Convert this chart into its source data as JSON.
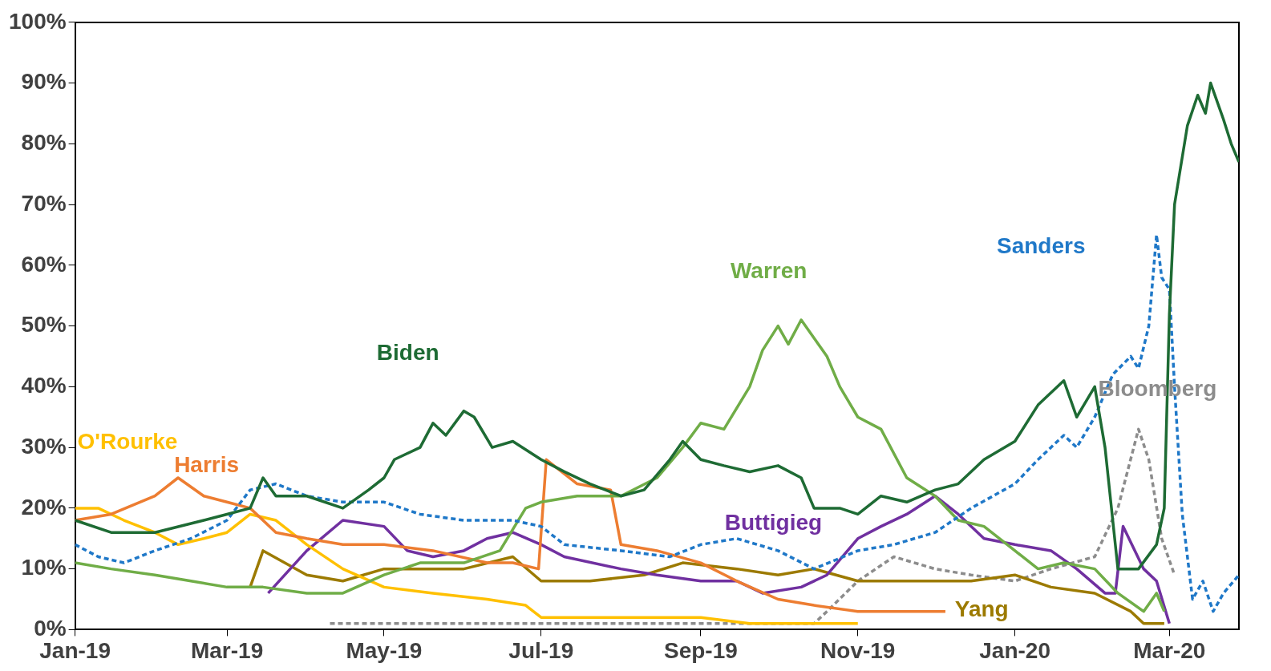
{
  "chart_data": {
    "type": "line",
    "xlim": [
      "2019-01-01",
      "2020-03-28"
    ],
    "ylim": [
      0,
      100
    ],
    "xticks": [
      {
        "value": "2019-01-01",
        "label": "Jan-19"
      },
      {
        "value": "2019-03-01",
        "label": "Mar-19"
      },
      {
        "value": "2019-05-01",
        "label": "May-19"
      },
      {
        "value": "2019-07-01",
        "label": "Jul-19"
      },
      {
        "value": "2019-09-01",
        "label": "Sep-19"
      },
      {
        "value": "2019-11-01",
        "label": "Nov-19"
      },
      {
        "value": "2020-01-01",
        "label": "Jan-20"
      },
      {
        "value": "2020-03-01",
        "label": "Mar-20"
      }
    ],
    "yticks": [
      {
        "value": 0,
        "label": "0%"
      },
      {
        "value": 10,
        "label": "10%"
      },
      {
        "value": 20,
        "label": "20%"
      },
      {
        "value": 30,
        "label": "30%"
      },
      {
        "value": 40,
        "label": "40%"
      },
      {
        "value": 50,
        "label": "50%"
      },
      {
        "value": 60,
        "label": "60%"
      },
      {
        "value": 70,
        "label": "70%"
      },
      {
        "value": 80,
        "label": "80%"
      },
      {
        "value": 90,
        "label": "90%"
      },
      {
        "value": 100,
        "label": "100%"
      }
    ],
    "grid": false,
    "legend": false,
    "marker": "none",
    "series": [
      {
        "name": "Biden",
        "color": "#1e6b34",
        "line_style": "solid",
        "x": [
          "2019-01-01",
          "2019-01-15",
          "2019-02-01",
          "2019-02-20",
          "2019-03-01",
          "2019-03-10",
          "2019-03-15",
          "2019-03-20",
          "2019-04-01",
          "2019-04-15",
          "2019-04-25",
          "2019-05-01",
          "2019-05-05",
          "2019-05-15",
          "2019-05-20",
          "2019-05-25",
          "2019-06-01",
          "2019-06-05",
          "2019-06-12",
          "2019-06-20",
          "2019-07-01",
          "2019-07-10",
          "2019-07-20",
          "2019-08-01",
          "2019-08-10",
          "2019-08-20",
          "2019-08-25",
          "2019-09-01",
          "2019-09-10",
          "2019-09-20",
          "2019-10-01",
          "2019-10-10",
          "2019-10-15",
          "2019-10-25",
          "2019-11-01",
          "2019-11-10",
          "2019-11-20",
          "2019-12-01",
          "2019-12-10",
          "2019-12-20",
          "2020-01-01",
          "2020-01-10",
          "2020-01-20",
          "2020-01-25",
          "2020-02-01",
          "2020-02-05",
          "2020-02-10",
          "2020-02-18",
          "2020-02-25",
          "2020-02-28",
          "2020-03-01",
          "2020-03-03",
          "2020-03-08",
          "2020-03-12",
          "2020-03-15",
          "2020-03-17",
          "2020-03-22",
          "2020-03-25",
          "2020-03-28"
        ],
        "values": [
          18,
          16,
          16,
          18,
          19,
          20,
          25,
          22,
          22,
          20,
          23,
          25,
          28,
          30,
          34,
          32,
          36,
          35,
          30,
          31,
          28,
          26,
          24,
          22,
          23,
          28,
          31,
          28,
          27,
          26,
          27,
          25,
          20,
          20,
          19,
          22,
          21,
          23,
          24,
          28,
          31,
          37,
          41,
          35,
          40,
          30,
          10,
          10,
          14,
          20,
          52,
          70,
          83,
          88,
          85,
          90,
          84,
          80,
          77
        ]
      },
      {
        "name": "Sanders",
        "color": "#1f78c8",
        "line_style": "dashed",
        "x": [
          "2019-01-01",
          "2019-01-10",
          "2019-01-20",
          "2019-02-01",
          "2019-02-15",
          "2019-03-01",
          "2019-03-10",
          "2019-03-20",
          "2019-04-01",
          "2019-04-15",
          "2019-05-01",
          "2019-05-15",
          "2019-06-01",
          "2019-06-20",
          "2019-07-01",
          "2019-07-10",
          "2019-08-01",
          "2019-08-20",
          "2019-09-01",
          "2019-09-15",
          "2019-10-01",
          "2019-10-15",
          "2019-11-01",
          "2019-11-15",
          "2019-12-01",
          "2019-12-15",
          "2020-01-01",
          "2020-01-10",
          "2020-01-20",
          "2020-01-25",
          "2020-02-01",
          "2020-02-08",
          "2020-02-15",
          "2020-02-18",
          "2020-02-22",
          "2020-02-25",
          "2020-02-27",
          "2020-03-01",
          "2020-03-03",
          "2020-03-06",
          "2020-03-10",
          "2020-03-14",
          "2020-03-18",
          "2020-03-22",
          "2020-03-28"
        ],
        "values": [
          14,
          12,
          11,
          13,
          15,
          18,
          23,
          24,
          22,
          21,
          21,
          19,
          18,
          18,
          17,
          14,
          13,
          12,
          14,
          15,
          13,
          10,
          13,
          14,
          16,
          20,
          24,
          28,
          32,
          30,
          35,
          42,
          45,
          43,
          50,
          65,
          58,
          56,
          40,
          19,
          5,
          8,
          3,
          6,
          9
        ]
      },
      {
        "name": "Warren",
        "color": "#70ad47",
        "line_style": "solid",
        "x": [
          "2019-01-01",
          "2019-01-15",
          "2019-02-01",
          "2019-02-15",
          "2019-03-01",
          "2019-03-15",
          "2019-04-01",
          "2019-04-15",
          "2019-05-01",
          "2019-05-15",
          "2019-06-01",
          "2019-06-15",
          "2019-06-25",
          "2019-07-01",
          "2019-07-15",
          "2019-08-01",
          "2019-08-15",
          "2019-08-25",
          "2019-09-01",
          "2019-09-10",
          "2019-09-20",
          "2019-09-25",
          "2019-10-01",
          "2019-10-05",
          "2019-10-10",
          "2019-10-15",
          "2019-10-20",
          "2019-10-25",
          "2019-11-01",
          "2019-11-10",
          "2019-11-20",
          "2019-12-01",
          "2019-12-10",
          "2019-12-20",
          "2020-01-01",
          "2020-01-10",
          "2020-01-20",
          "2020-02-01",
          "2020-02-10",
          "2020-02-20",
          "2020-02-25",
          "2020-02-28"
        ],
        "values": [
          11,
          10,
          9,
          8,
          7,
          7,
          6,
          6,
          9,
          11,
          11,
          13,
          20,
          21,
          22,
          22,
          25,
          30,
          34,
          33,
          40,
          46,
          50,
          47,
          51,
          48,
          45,
          40,
          35,
          33,
          25,
          22,
          18,
          17,
          13,
          10,
          11,
          10,
          6,
          3,
          6,
          3
        ]
      },
      {
        "name": "Harris",
        "color": "#ed7d31",
        "line_style": "solid",
        "x": [
          "2019-01-01",
          "2019-01-15",
          "2019-02-01",
          "2019-02-10",
          "2019-02-20",
          "2019-03-01",
          "2019-03-10",
          "2019-03-20",
          "2019-04-01",
          "2019-04-15",
          "2019-05-01",
          "2019-05-20",
          "2019-06-10",
          "2019-06-20",
          "2019-06-30",
          "2019-07-03",
          "2019-07-15",
          "2019-07-28",
          "2019-08-01",
          "2019-08-15",
          "2019-09-01",
          "2019-09-15",
          "2019-10-01",
          "2019-10-15",
          "2019-11-01",
          "2019-11-15",
          "2019-12-01",
          "2019-12-05"
        ],
        "values": [
          18,
          19,
          22,
          25,
          22,
          21,
          20,
          16,
          15,
          14,
          14,
          13,
          11,
          11,
          10,
          28,
          24,
          23,
          14,
          13,
          11,
          8,
          5,
          4,
          3,
          3,
          3,
          3
        ]
      },
      {
        "name": "O'Rourke",
        "color": "#ffc000",
        "line_style": "solid",
        "x": [
          "2019-01-01",
          "2019-01-10",
          "2019-01-20",
          "2019-02-01",
          "2019-02-10",
          "2019-02-20",
          "2019-03-01",
          "2019-03-10",
          "2019-03-20",
          "2019-04-01",
          "2019-04-15",
          "2019-05-01",
          "2019-05-20",
          "2019-06-10",
          "2019-06-25",
          "2019-07-01",
          "2019-07-20",
          "2019-08-10",
          "2019-09-01",
          "2019-09-20",
          "2019-10-15",
          "2019-11-01"
        ],
        "values": [
          20,
          20,
          18,
          16,
          14,
          15,
          16,
          19,
          18,
          14,
          10,
          7,
          6,
          5,
          4,
          2,
          2,
          2,
          2,
          1,
          1,
          1
        ]
      },
      {
        "name": "Buttigieg",
        "color": "#7030a0",
        "line_style": "solid",
        "x": [
          "2019-03-17",
          "2019-04-01",
          "2019-04-15",
          "2019-05-01",
          "2019-05-10",
          "2019-05-20",
          "2019-06-01",
          "2019-06-10",
          "2019-06-20",
          "2019-07-01",
          "2019-07-10",
          "2019-08-01",
          "2019-08-15",
          "2019-09-01",
          "2019-09-15",
          "2019-09-25",
          "2019-10-10",
          "2019-10-20",
          "2019-11-01",
          "2019-11-10",
          "2019-11-20",
          "2019-12-01",
          "2019-12-10",
          "2019-12-20",
          "2020-01-01",
          "2020-01-15",
          "2020-01-25",
          "2020-02-05",
          "2020-02-09",
          "2020-02-12",
          "2020-02-20",
          "2020-02-25",
          "2020-03-01"
        ],
        "values": [
          6,
          13,
          18,
          17,
          13,
          12,
          13,
          15,
          16,
          14,
          12,
          10,
          9,
          8,
          8,
          6,
          7,
          9,
          15,
          17,
          19,
          22,
          19,
          15,
          14,
          13,
          10,
          6,
          6,
          17,
          10,
          8,
          1
        ]
      },
      {
        "name": "Yang",
        "color": "#9c7a00",
        "line_style": "solid",
        "x": [
          "2019-03-10",
          "2019-03-15",
          "2019-04-01",
          "2019-04-15",
          "2019-05-01",
          "2019-06-01",
          "2019-06-20",
          "2019-07-01",
          "2019-07-20",
          "2019-08-10",
          "2019-08-25",
          "2019-09-15",
          "2019-10-01",
          "2019-10-15",
          "2019-11-01",
          "2019-11-15",
          "2019-12-01",
          "2019-12-15",
          "2020-01-01",
          "2020-01-15",
          "2020-02-01",
          "2020-02-15",
          "2020-02-20",
          "2020-02-28"
        ],
        "values": [
          7,
          13,
          9,
          8,
          10,
          10,
          12,
          8,
          8,
          9,
          11,
          10,
          9,
          10,
          8,
          8,
          8,
          8,
          9,
          7,
          6,
          3,
          1,
          1
        ]
      },
      {
        "name": "Bloomberg",
        "color": "#8c8c8c",
        "line_style": "dashed",
        "x": [
          "2019-04-10",
          "2019-09-21",
          "2019-10-15",
          "2019-10-20",
          "2019-11-01",
          "2019-11-15",
          "2019-12-01",
          "2019-12-15",
          "2020-01-01",
          "2020-01-15",
          "2020-02-01",
          "2020-02-10",
          "2020-02-18",
          "2020-02-22",
          "2020-02-27",
          "2020-03-03"
        ],
        "values": [
          1,
          1,
          1,
          3,
          8,
          12,
          10,
          9,
          8,
          10,
          12,
          20,
          33,
          28,
          15,
          9
        ]
      }
    ]
  }
}
